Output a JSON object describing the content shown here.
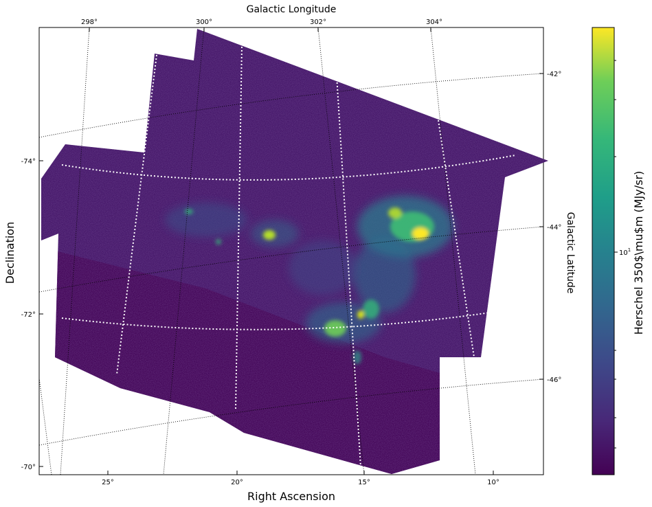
{
  "figure": {
    "top_axis_title": "Galactic Longitude",
    "bottom_axis_title": "Right Ascension",
    "left_axis_title": "Declination",
    "right_axis_title": "Galactic Latitude",
    "top_ticks": [
      "298°",
      "300°",
      "302°",
      "304°"
    ],
    "bottom_ticks": [
      "25°",
      "20°",
      "15°",
      "10°"
    ],
    "left_ticks": [
      "-74°",
      "-72°",
      "-70°"
    ],
    "right_ticks": [
      "-42°",
      "-44°",
      "-46°"
    ],
    "colors": {
      "background": "#ffffff",
      "map_low": "#440154",
      "map_base": "#46186a",
      "grid_primary": "#ffffff",
      "grid_secondary": "#000000"
    },
    "colorbar": {
      "label": "Herschel 350$\\mu$m (MJy/sr)",
      "tick_label": "10",
      "tick_exponent": "1",
      "colormap": "viridis",
      "scale": "log"
    }
  }
}
